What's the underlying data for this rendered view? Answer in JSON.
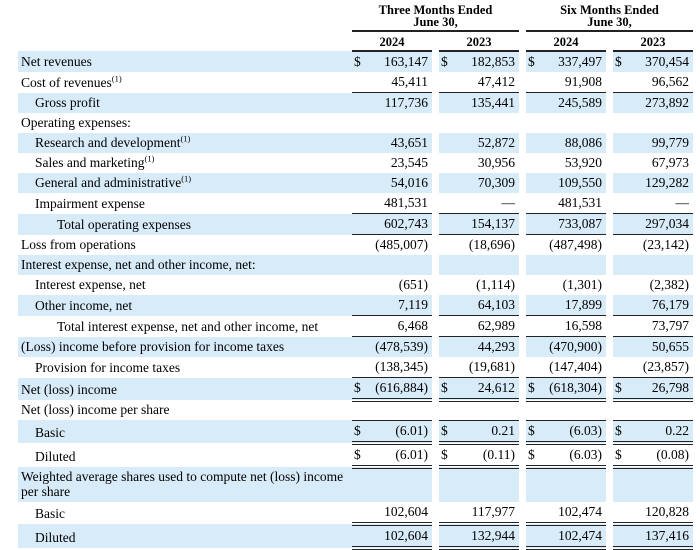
{
  "table": {
    "currency_symbol": "$",
    "colors": {
      "row_shade": "#d7ebf9",
      "rule": "#222222",
      "text": "#000000"
    },
    "header": {
      "groups": [
        {
          "line1": "Three Months Ended",
          "line2": "June 30,"
        },
        {
          "line1": "Six Months Ended",
          "line2": "June 30,"
        }
      ],
      "years": [
        "2024",
        "2023",
        "2024",
        "2023"
      ]
    },
    "rows": [
      {
        "label": "Net revenues",
        "indent": 0,
        "shaded": true,
        "dollar": true,
        "values": [
          "163,147",
          "182,853",
          "337,497",
          "370,454"
        ],
        "underline": "none"
      },
      {
        "label": "Cost of revenues",
        "sup": "(1)",
        "indent": 0,
        "shaded": false,
        "dollar": false,
        "values": [
          "45,411",
          "47,412",
          "91,908",
          "96,562"
        ],
        "underline": "single"
      },
      {
        "label": "Gross profit",
        "indent": 1,
        "shaded": true,
        "dollar": false,
        "values": [
          "117,736",
          "135,441",
          "245,589",
          "273,892"
        ],
        "underline": "none"
      },
      {
        "label": "Operating expenses:",
        "indent": 0,
        "shaded": false,
        "section": true
      },
      {
        "label": "Research and development",
        "sup": "(1)",
        "indent": 1,
        "shaded": true,
        "dollar": false,
        "values": [
          "43,651",
          "52,872",
          "88,086",
          "99,779"
        ],
        "underline": "none"
      },
      {
        "label": "Sales and marketing",
        "sup": "(1)",
        "indent": 1,
        "shaded": false,
        "dollar": false,
        "values": [
          "23,545",
          "30,956",
          "53,920",
          "67,973"
        ],
        "underline": "none"
      },
      {
        "label": "General and administrative",
        "sup": "(1)",
        "indent": 1,
        "shaded": true,
        "dollar": false,
        "values": [
          "54,016",
          "70,309",
          "109,550",
          "129,282"
        ],
        "underline": "none"
      },
      {
        "label": "Impairment expense",
        "indent": 1,
        "shaded": false,
        "dollar": false,
        "values": [
          "481,531",
          "—",
          "481,531",
          "—"
        ],
        "underline": "single"
      },
      {
        "label": "Total operating expenses",
        "indent": 2,
        "shaded": true,
        "dollar": false,
        "values": [
          "602,743",
          "154,137",
          "733,087",
          "297,034"
        ],
        "underline": "single"
      },
      {
        "label": "Loss from operations",
        "indent": 0,
        "shaded": false,
        "dollar": false,
        "values": [
          "(485,007)",
          "(18,696)",
          "(487,498)",
          "(23,142)"
        ],
        "underline": "none"
      },
      {
        "label": "Interest expense, net and other income, net:",
        "indent": 0,
        "shaded": true,
        "section": true
      },
      {
        "label": "Interest expense, net",
        "indent": 1,
        "shaded": false,
        "dollar": false,
        "values": [
          "(651)",
          "(1,114)",
          "(1,301)",
          "(2,382)"
        ],
        "underline": "none"
      },
      {
        "label": "Other income, net",
        "indent": 1,
        "shaded": true,
        "dollar": false,
        "values": [
          "7,119",
          "64,103",
          "17,899",
          "76,179"
        ],
        "underline": "single"
      },
      {
        "label": "Total interest expense, net and other income, net",
        "indent": 2,
        "shaded": false,
        "dollar": false,
        "values": [
          "6,468",
          "62,989",
          "16,598",
          "73,797"
        ],
        "underline": "single"
      },
      {
        "label": "(Loss) income before provision for income taxes",
        "indent": 0,
        "shaded": true,
        "dollar": false,
        "values": [
          "(478,539)",
          "44,293",
          "(470,900)",
          "50,655"
        ],
        "underline": "none"
      },
      {
        "label": "Provision for income taxes",
        "indent": 1,
        "shaded": false,
        "dollar": false,
        "values": [
          "(138,345)",
          "(19,681)",
          "(147,404)",
          "(23,857)"
        ],
        "underline": "single"
      },
      {
        "label": "Net (loss) income",
        "indent": 0,
        "shaded": true,
        "dollar": true,
        "values": [
          "(616,884)",
          "24,612",
          "(618,304)",
          "26,798"
        ],
        "underline": "double"
      },
      {
        "label": "Net (loss) income per share",
        "indent": 0,
        "shaded": false,
        "section": true
      },
      {
        "label": "Basic",
        "indent": 1,
        "shaded": true,
        "dollar": true,
        "values": [
          "(6.01)",
          "0.21",
          "(6.03)",
          "0.22"
        ],
        "underline": "double",
        "topline": true
      },
      {
        "label": "Diluted",
        "indent": 1,
        "shaded": false,
        "dollar": true,
        "values": [
          "(6.01)",
          "(0.11)",
          "(6.03)",
          "(0.08)"
        ],
        "underline": "double"
      },
      {
        "label": "Weighted average shares used to compute net (loss) income per share",
        "indent": 0,
        "shaded": true,
        "section": true
      },
      {
        "label": "Basic",
        "indent": 1,
        "shaded": false,
        "dollar": false,
        "values": [
          "102,604",
          "117,977",
          "102,474",
          "120,828"
        ],
        "underline": "double"
      },
      {
        "label": "Diluted",
        "indent": 1,
        "shaded": true,
        "dollar": false,
        "values": [
          "102,604",
          "132,944",
          "102,474",
          "137,416"
        ],
        "underline": "double"
      }
    ]
  }
}
